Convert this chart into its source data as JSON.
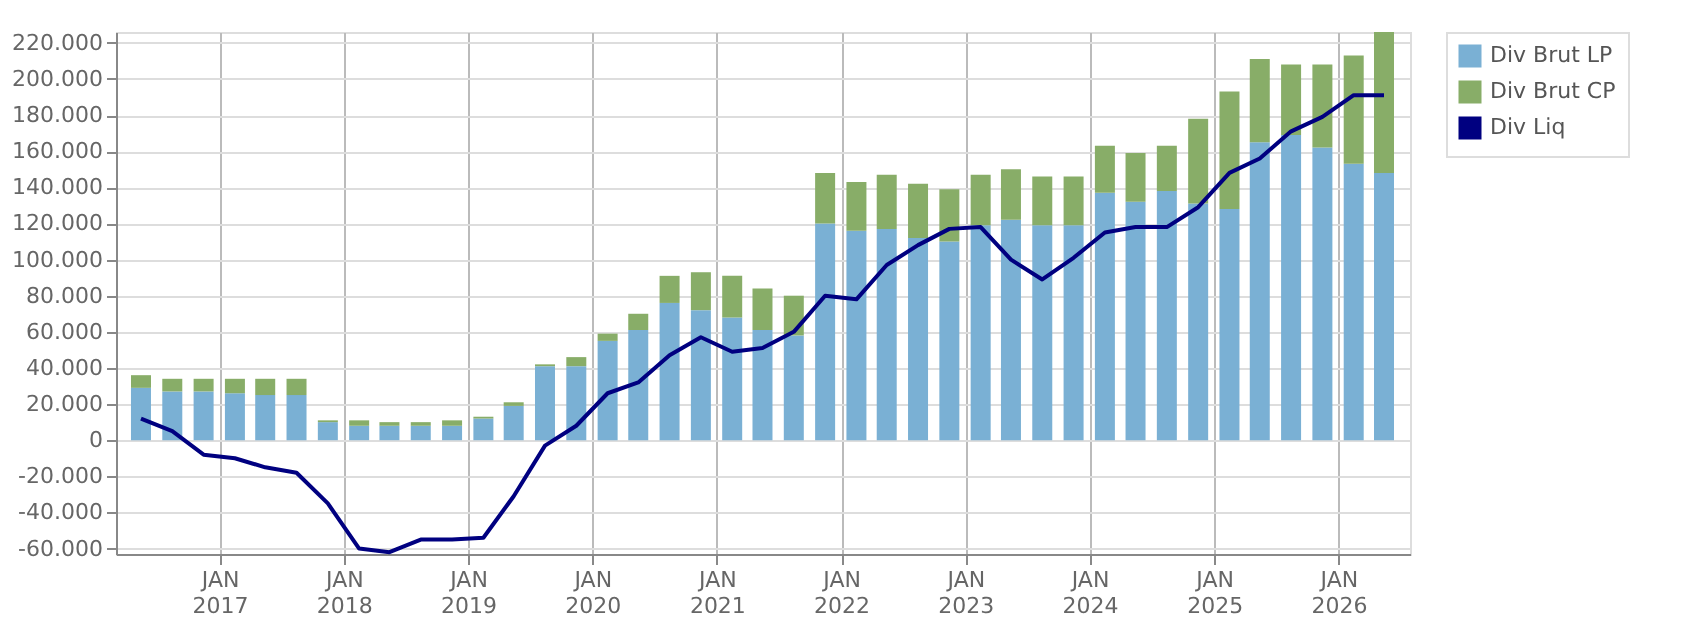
{
  "chart_data": {
    "type": "bar",
    "stacked": true,
    "x": [
      "2016-05-15",
      "2016-08-15",
      "2016-11-15",
      "2017-02-15",
      "2017-05-15",
      "2017-08-15",
      "2017-11-15",
      "2018-02-15",
      "2018-05-15",
      "2018-08-15",
      "2018-11-15",
      "2019-02-15",
      "2019-05-15",
      "2019-08-15",
      "2019-11-15",
      "2020-02-15",
      "2020-05-15",
      "2020-08-15",
      "2020-11-15",
      "2021-02-15",
      "2021-05-15",
      "2021-08-15",
      "2021-11-15",
      "2022-02-15",
      "2022-05-15",
      "2022-08-15",
      "2022-11-15",
      "2023-02-15",
      "2023-05-15",
      "2023-08-15",
      "2023-11-15",
      "2024-02-15",
      "2024-05-15",
      "2024-08-15",
      "2024-11-15",
      "2025-02-15",
      "2025-05-15",
      "2025-08-15",
      "2025-11-15",
      "2026-02-15",
      "2026-05-15"
    ],
    "series": [
      {
        "name": "Div Brut LP",
        "color": "#7ab0d4",
        "values": [
          29000,
          27000,
          27000,
          26000,
          25000,
          25000,
          10000,
          8000,
          8000,
          8000,
          8000,
          12000,
          19000,
          41000,
          41000,
          55000,
          61000,
          76000,
          72000,
          68000,
          61000,
          58000,
          120000,
          116000,
          117000,
          112000,
          110000,
          119000,
          122000,
          119000,
          119000,
          137000,
          132000,
          138000,
          131000,
          128000,
          165000,
          169000,
          162000,
          153000,
          148000
        ]
      },
      {
        "name": "Div Brut CP",
        "color": "#88ad68",
        "values": [
          7000,
          7000,
          7000,
          8000,
          9000,
          9000,
          1000,
          3000,
          2000,
          2000,
          3000,
          1000,
          2000,
          1000,
          5000,
          4000,
          9000,
          15000,
          21000,
          23000,
          23000,
          22000,
          28000,
          27000,
          30000,
          30000,
          29000,
          28000,
          28000,
          27000,
          27000,
          26000,
          27000,
          25000,
          47000,
          65000,
          46000,
          39000,
          46000,
          60000,
          78000
        ]
      },
      {
        "name": "Div Liq",
        "type": "line",
        "color": "#000080",
        "line_style": "solid",
        "values": [
          12000,
          5000,
          -8000,
          -10000,
          -15000,
          -18000,
          -35000,
          -60000,
          -62000,
          -55000,
          -55000,
          -54000,
          -31000,
          -3000,
          8000,
          26000,
          32000,
          47000,
          57000,
          49000,
          51000,
          60000,
          80000,
          78000,
          97000,
          108000,
          117000,
          118000,
          100000,
          89000,
          101000,
          115000,
          118000,
          118000,
          129000,
          148000,
          156000,
          171000,
          179000,
          191000,
          191000
        ]
      }
    ],
    "xlim": [
      "2016-04-01",
      "2026-07-01"
    ],
    "xticks": [
      {
        "value": "2017-01-01",
        "label": "JAN 2017"
      },
      {
        "value": "2018-01-01",
        "label": "JAN 2018"
      },
      {
        "value": "2019-01-01",
        "label": "JAN 2019"
      },
      {
        "value": "2020-01-01",
        "label": "JAN 2020"
      },
      {
        "value": "2021-01-01",
        "label": "JAN 2021"
      },
      {
        "value": "2022-01-01",
        "label": "JAN 2022"
      },
      {
        "value": "2023-01-01",
        "label": "JAN 2023"
      },
      {
        "value": "2024-01-01",
        "label": "JAN 2024"
      },
      {
        "value": "2025-01-01",
        "label": "JAN 2025"
      },
      {
        "value": "2026-01-01",
        "label": "JAN 2026"
      }
    ],
    "ylim": [
      -63000,
      226000
    ],
    "yticks": [
      {
        "value": -60000,
        "label": "-60.000"
      },
      {
        "value": -40000,
        "label": "-40.000"
      },
      {
        "value": -20000,
        "label": "-20.000"
      },
      0,
      {
        "value": 20000,
        "label": "20.000"
      },
      {
        "value": 40000,
        "label": "40.000"
      },
      {
        "value": 60000,
        "label": "60.000"
      },
      {
        "value": 80000,
        "label": "80.000"
      },
      {
        "value": 100000,
        "label": "100.000"
      },
      {
        "value": 120000,
        "label": "120.000"
      },
      {
        "value": 140000,
        "label": "140.000"
      },
      {
        "value": 160000,
        "label": "160.000"
      },
      {
        "value": 180000,
        "label": "180.000"
      },
      {
        "value": 200000,
        "label": "200.000"
      },
      {
        "value": 220000,
        "label": "220.000"
      }
    ],
    "grid": true,
    "legend": "top right",
    "marker": "none"
  }
}
